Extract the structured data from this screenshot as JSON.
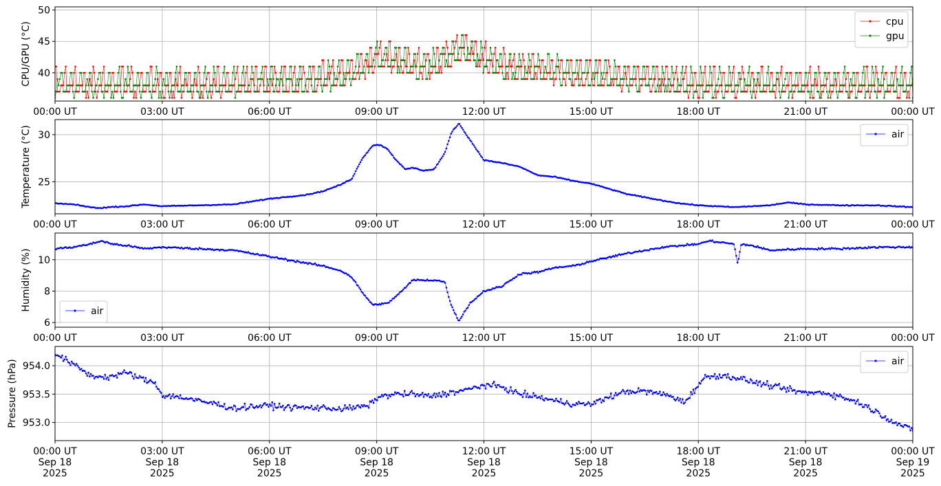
{
  "chart_data": [
    {
      "type": "line",
      "ylabel": "CPU/GPU (°C)",
      "xlabel": "",
      "x_range": [
        "2025-09-18 00:00 UT",
        "2025-09-19 00:00 UT"
      ],
      "ylim": [
        35.5,
        50.5
      ],
      "yticks": [
        40,
        45,
        50
      ],
      "xtick_labels": [
        "00:00 UT",
        "03:00 UT",
        "06:00 UT",
        "09:00 UT",
        "12:00 UT",
        "15:00 UT",
        "18:00 UT",
        "21:00 UT",
        "00:00 UT"
      ],
      "grid": true,
      "legend_position": "upper right",
      "marker": "dot",
      "series": [
        {
          "name": "cpu",
          "color": "#ff0000",
          "x_hours": [
            0,
            1,
            2,
            3,
            4,
            5,
            6,
            7,
            8,
            8.5,
            9,
            9.5,
            10,
            10.5,
            11,
            11.4,
            12,
            12.5,
            13,
            14,
            15,
            16,
            17,
            18,
            19,
            20,
            21,
            22,
            23,
            24
          ],
          "y": [
            39.5,
            39.5,
            39.5,
            39.5,
            39.5,
            39.5,
            40,
            40,
            41,
            42,
            43.8,
            43.5,
            42.5,
            42.5,
            44,
            45.3,
            43.5,
            42.5,
            42,
            41.5,
            41,
            40.5,
            40,
            39.5,
            39.5,
            39.5,
            39.5,
            39.5,
            39.5,
            39.5
          ]
        },
        {
          "name": "gpu",
          "color": "#008000",
          "x_hours": [
            0,
            1,
            2,
            3,
            4,
            5,
            6,
            7,
            8,
            8.5,
            9,
            9.5,
            10,
            10.5,
            11,
            11.4,
            12,
            12.5,
            13,
            14,
            15,
            16,
            17,
            18,
            19,
            20,
            21,
            22,
            23,
            24
          ],
          "y": [
            39.5,
            39.5,
            39.5,
            39.5,
            39.5,
            39.5,
            40,
            40,
            41,
            42,
            43.8,
            43.5,
            42.5,
            42.5,
            44,
            45.3,
            43.5,
            42.5,
            42,
            41.5,
            41,
            40.5,
            40,
            39.5,
            39.5,
            39.5,
            39.5,
            39.5,
            39.5,
            39.5
          ]
        }
      ]
    },
    {
      "type": "line",
      "ylabel": "Temperature (°C)",
      "xlabel": "",
      "x_range": [
        "2025-09-18 00:00 UT",
        "2025-09-19 00:00 UT"
      ],
      "ylim": [
        21.6,
        31.6
      ],
      "yticks": [
        25,
        30
      ],
      "xtick_labels": [
        "00:00 UT",
        "03:00 UT",
        "06:00 UT",
        "09:00 UT",
        "12:00 UT",
        "15:00 UT",
        "18:00 UT",
        "21:00 UT",
        "00:00 UT"
      ],
      "grid": true,
      "legend_position": "upper right",
      "marker": "dot",
      "series": [
        {
          "name": "air",
          "color": "#0000ff",
          "x_hours": [
            0,
            0.5,
            1,
            1.2,
            1.5,
            2,
            2.5,
            3,
            4,
            5,
            6,
            7,
            7.5,
            8,
            8.3,
            8.6,
            8.9,
            9.1,
            9.3,
            9.5,
            9.8,
            10,
            10.3,
            10.6,
            10.9,
            11.1,
            11.3,
            11.6,
            12,
            12.5,
            13,
            13.5,
            14,
            14.5,
            15,
            16,
            17,
            17.5,
            18,
            18.5,
            19,
            19.5,
            20,
            20.5,
            21,
            22,
            23,
            24
          ],
          "y": [
            22.7,
            22.6,
            22.3,
            22.2,
            22.3,
            22.4,
            22.6,
            22.4,
            22.5,
            22.6,
            23.2,
            23.6,
            24.0,
            24.7,
            25.3,
            27.5,
            28.9,
            28.9,
            28.5,
            27.5,
            26.3,
            26.5,
            26.2,
            26.3,
            28.0,
            30.3,
            31.2,
            29.5,
            27.3,
            27.0,
            26.6,
            25.7,
            25.5,
            25.1,
            24.8,
            23.7,
            23.0,
            22.7,
            22.5,
            22.4,
            22.3,
            22.4,
            22.5,
            22.8,
            22.6,
            22.5,
            22.5,
            22.3
          ]
        }
      ]
    },
    {
      "type": "line",
      "ylabel": "Humidity (%)",
      "xlabel": "",
      "x_range": [
        "2025-09-18 00:00 UT",
        "2025-09-19 00:00 UT"
      ],
      "ylim": [
        5.7,
        11.7
      ],
      "yticks": [
        6,
        8,
        10
      ],
      "xtick_labels": [
        "00:00 UT",
        "03:00 UT",
        "06:00 UT",
        "09:00 UT",
        "12:00 UT",
        "15:00 UT",
        "18:00 UT",
        "21:00 UT",
        "00:00 UT"
      ],
      "grid": true,
      "legend_position": "lower left",
      "marker": "dot",
      "series": [
        {
          "name": "air",
          "color": "#0000ff",
          "x_hours": [
            0,
            0.5,
            1,
            1.3,
            1.6,
            2,
            2.5,
            3,
            4,
            5,
            6,
            7,
            7.5,
            8,
            8.3,
            8.6,
            8.9,
            9.1,
            9.3,
            9.5,
            9.8,
            10,
            10.3,
            10.6,
            10.9,
            11.1,
            11.3,
            11.6,
            12,
            12.5,
            13,
            13.5,
            14,
            14.5,
            15,
            16,
            17,
            17.5,
            18,
            18.3,
            19,
            19.1,
            19.2,
            19.5,
            20,
            21,
            22,
            23,
            24
          ],
          "y": [
            10.7,
            10.8,
            11.0,
            11.2,
            11.0,
            10.9,
            10.7,
            10.8,
            10.7,
            10.6,
            10.2,
            9.8,
            9.6,
            9.3,
            8.9,
            7.9,
            7.1,
            7.2,
            7.2,
            7.6,
            8.2,
            8.7,
            8.7,
            8.7,
            8.6,
            7.0,
            6.1,
            7.2,
            8.0,
            8.3,
            9.1,
            9.2,
            9.5,
            9.6,
            9.9,
            10.4,
            10.8,
            10.9,
            11.0,
            11.2,
            11.0,
            9.7,
            11.0,
            10.9,
            10.6,
            10.7,
            10.7,
            10.8,
            10.8
          ]
        }
      ]
    },
    {
      "type": "line",
      "ylabel": "Pressure (hPa)",
      "xlabel": "",
      "x_range": [
        "2025-09-18 00:00 UT",
        "2025-09-19 00:00 UT"
      ],
      "ylim": [
        952.68,
        954.34
      ],
      "yticks": [
        953.0,
        953.5,
        954.0
      ],
      "ytick_labels": [
        "953.0",
        "953.5",
        "954.0"
      ],
      "xtick_labels": [
        "00:00 UT\nSep 18\n2025",
        "03:00 UT\nSep 18\n2025",
        "06:00 UT\nSep 18\n2025",
        "09:00 UT\nSep 18\n2025",
        "12:00 UT\nSep 18\n2025",
        "15:00 UT\nSep 18\n2025",
        "18:00 UT\nSep 18\n2025",
        "21:00 UT\nSep 18\n2025",
        "00:00 UT\nSep 19\n2025"
      ],
      "grid": true,
      "legend_position": "upper right",
      "marker": "dot",
      "series": [
        {
          "name": "air",
          "color": "#0000ff",
          "x_hours": [
            0,
            0.3,
            0.7,
            1,
            1.5,
            2,
            2.5,
            2.8,
            3,
            3.5,
            4,
            4.5,
            5,
            5.5,
            6,
            6.5,
            7,
            7.5,
            8,
            8.5,
            8.8,
            9,
            9.5,
            10,
            10.5,
            11,
            11.5,
            12,
            12.5,
            13,
            13.5,
            14,
            14.5,
            15,
            15.5,
            16,
            16.5,
            17,
            17.3,
            17.6,
            18,
            18.2,
            18.5,
            19,
            19.5,
            20,
            20.5,
            21,
            21.5,
            22,
            22.5,
            23,
            23.5,
            24
          ],
          "y": [
            954.22,
            954.1,
            953.95,
            953.82,
            953.8,
            953.88,
            953.75,
            953.7,
            953.48,
            953.45,
            953.38,
            953.33,
            953.25,
            953.28,
            953.3,
            953.27,
            953.26,
            953.26,
            953.24,
            953.27,
            953.3,
            953.44,
            953.5,
            953.5,
            953.46,
            953.52,
            953.57,
            953.66,
            953.63,
            953.5,
            953.45,
            953.38,
            953.33,
            953.32,
            953.45,
            953.55,
            953.55,
            953.5,
            953.45,
            953.35,
            953.66,
            953.8,
            953.83,
            953.8,
            953.72,
            953.65,
            953.58,
            953.52,
            953.53,
            953.45,
            953.35,
            953.18,
            953.0,
            952.86
          ]
        }
      ]
    }
  ]
}
